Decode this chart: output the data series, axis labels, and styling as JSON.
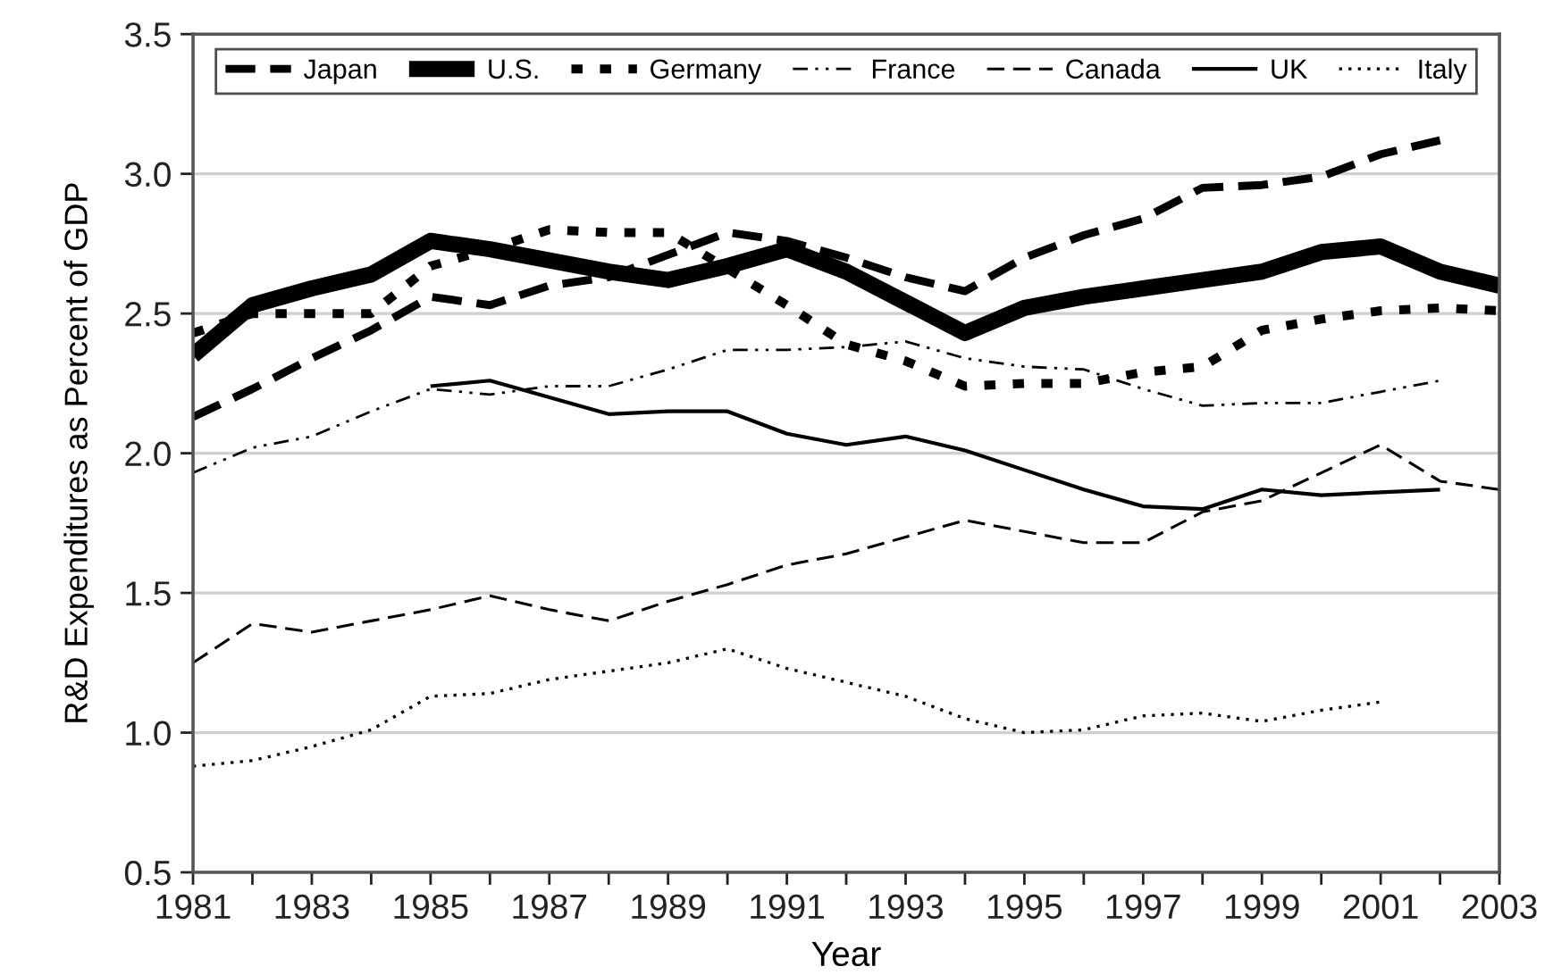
{
  "chart_data": {
    "type": "line",
    "xlabel": "Year",
    "ylabel": "R&D Expenditures as Percent of GDP",
    "x": [
      1981,
      1982,
      1983,
      1984,
      1985,
      1986,
      1987,
      1988,
      1989,
      1990,
      1991,
      1992,
      1993,
      1994,
      1995,
      1996,
      1997,
      1998,
      1999,
      2000,
      2001,
      2002,
      2003
    ],
    "series": [
      {
        "name": "Japan",
        "color": "#000000",
        "line_style": "dashed",
        "values": [
          2.13,
          2.23,
          2.34,
          2.44,
          2.56,
          2.53,
          2.6,
          2.63,
          2.71,
          2.79,
          2.76,
          2.7,
          2.63,
          2.58,
          2.7,
          2.78,
          2.84,
          2.95,
          2.96,
          2.99,
          3.07,
          3.12,
          null
        ]
      },
      {
        "name": "U.S.",
        "color": "#000000",
        "line_style": "solid",
        "values": [
          2.35,
          2.53,
          2.59,
          2.64,
          2.76,
          2.73,
          2.69,
          2.65,
          2.62,
          2.67,
          2.73,
          2.65,
          2.54,
          2.43,
          2.52,
          2.56,
          2.59,
          2.62,
          2.65,
          2.72,
          2.74,
          2.65,
          2.6
        ]
      },
      {
        "name": "Germany",
        "color": "#000000",
        "line_style": "dashed",
        "values": [
          2.43,
          2.5,
          2.5,
          2.5,
          2.67,
          2.73,
          2.8,
          2.79,
          2.79,
          2.66,
          2.53,
          2.39,
          2.33,
          2.24,
          2.25,
          2.25,
          2.29,
          2.31,
          2.44,
          2.48,
          2.51,
          2.52,
          2.51
        ]
      },
      {
        "name": "France",
        "color": "#000000",
        "line_style": "dashdot",
        "values": [
          1.93,
          2.02,
          2.06,
          2.15,
          2.23,
          2.21,
          2.24,
          2.24,
          2.3,
          2.37,
          2.37,
          2.38,
          2.4,
          2.34,
          2.31,
          2.3,
          2.23,
          2.17,
          2.18,
          2.18,
          2.22,
          2.26,
          null
        ]
      },
      {
        "name": "Canada",
        "color": "#000000",
        "line_style": "dashed",
        "values": [
          1.25,
          1.39,
          1.36,
          1.4,
          1.44,
          1.49,
          1.44,
          1.4,
          1.47,
          1.53,
          1.6,
          1.64,
          1.7,
          1.76,
          1.72,
          1.68,
          1.68,
          1.79,
          1.83,
          1.93,
          2.03,
          1.9,
          1.87
        ]
      },
      {
        "name": "UK",
        "color": "#000000",
        "line_style": "solid",
        "values": [
          null,
          null,
          null,
          null,
          2.24,
          2.26,
          2.2,
          2.14,
          2.15,
          2.15,
          2.07,
          2.03,
          2.06,
          2.01,
          1.94,
          1.87,
          1.81,
          1.8,
          1.87,
          1.85,
          1.86,
          1.87,
          null
        ]
      },
      {
        "name": "Italy",
        "color": "#000000",
        "line_style": "dotted",
        "values": [
          0.88,
          0.9,
          0.95,
          1.01,
          1.13,
          1.14,
          1.19,
          1.22,
          1.25,
          1.3,
          1.23,
          1.18,
          1.13,
          1.05,
          1.0,
          1.01,
          1.06,
          1.07,
          1.04,
          1.08,
          1.11,
          null,
          null
        ]
      }
    ],
    "xlim": [
      1981,
      2003
    ],
    "xticks": [
      1981,
      {
        "value": 1982,
        "label": null
      },
      1983,
      {
        "value": 1984,
        "label": null
      },
      1985,
      {
        "value": 1986,
        "label": null
      },
      1987,
      {
        "value": 1988,
        "label": null
      },
      1989,
      {
        "value": 1990,
        "label": null
      },
      1991,
      {
        "value": 1992,
        "label": null
      },
      1993,
      {
        "value": 1994,
        "label": null
      },
      1995,
      {
        "value": 1996,
        "label": null
      },
      1997,
      {
        "value": 1998,
        "label": null
      },
      1999,
      {
        "value": 2000,
        "label": null
      },
      2001,
      {
        "value": 2002,
        "label": null
      },
      2003
    ],
    "ylim": [
      0.5,
      3.5
    ],
    "yticks": [
      0.5,
      {
        "value": 1,
        "label": "1.0"
      },
      1.5,
      {
        "value": 2,
        "label": "2.0"
      },
      2.5,
      {
        "value": 3,
        "label": "3.0"
      },
      3.5
    ],
    "grid": "y",
    "legend": "top",
    "marker": "none"
  }
}
